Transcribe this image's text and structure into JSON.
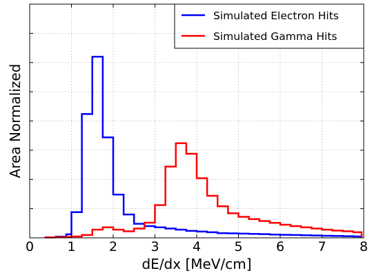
{
  "chart_data": {
    "type": "line",
    "style": "step histogram",
    "xlabel": "dE/dx [MeV/cm]",
    "ylabel": "Area Normalized",
    "xlim": [
      0,
      8
    ],
    "ylim": [
      0,
      1
    ],
    "x_ticks": [
      "0",
      "1",
      "2",
      "3",
      "4",
      "5",
      "6",
      "7",
      "8"
    ],
    "grid": true,
    "legend_position": "top-right",
    "bin_edges": [
      0.375,
      0.625,
      0.875,
      1.0,
      1.25,
      1.5,
      1.75,
      2.0,
      2.25,
      2.5,
      2.75,
      3.0,
      3.25,
      3.5,
      3.75,
      4.0,
      4.25,
      4.5,
      4.75,
      5.0,
      5.25,
      5.5,
      5.75,
      6.0,
      6.25,
      6.5,
      6.75,
      7.0,
      7.25,
      7.5,
      7.75,
      7.95
    ],
    "series": [
      {
        "name": "Simulated Electron Hits",
        "color": "#0000ff",
        "values": [
          0.002,
          0.005,
          0.015,
          0.11,
          0.53,
          0.775,
          0.43,
          0.185,
          0.1,
          0.06,
          0.05,
          0.045,
          0.04,
          0.035,
          0.03,
          0.027,
          0.024,
          0.02,
          0.019,
          0.018,
          0.017,
          0.016,
          0.014,
          0.013,
          0.012,
          0.011,
          0.01,
          0.009,
          0.008,
          0.007,
          0.006
        ]
      },
      {
        "name": "Simulated Gamma Hits",
        "color": "#ff0000",
        "values": [
          0.002,
          0.003,
          0.004,
          0.006,
          0.012,
          0.035,
          0.045,
          0.035,
          0.028,
          0.04,
          0.065,
          0.14,
          0.305,
          0.405,
          0.36,
          0.255,
          0.18,
          0.135,
          0.105,
          0.09,
          0.08,
          0.072,
          0.064,
          0.056,
          0.05,
          0.045,
          0.04,
          0.035,
          0.031,
          0.028,
          0.024
        ]
      }
    ]
  }
}
